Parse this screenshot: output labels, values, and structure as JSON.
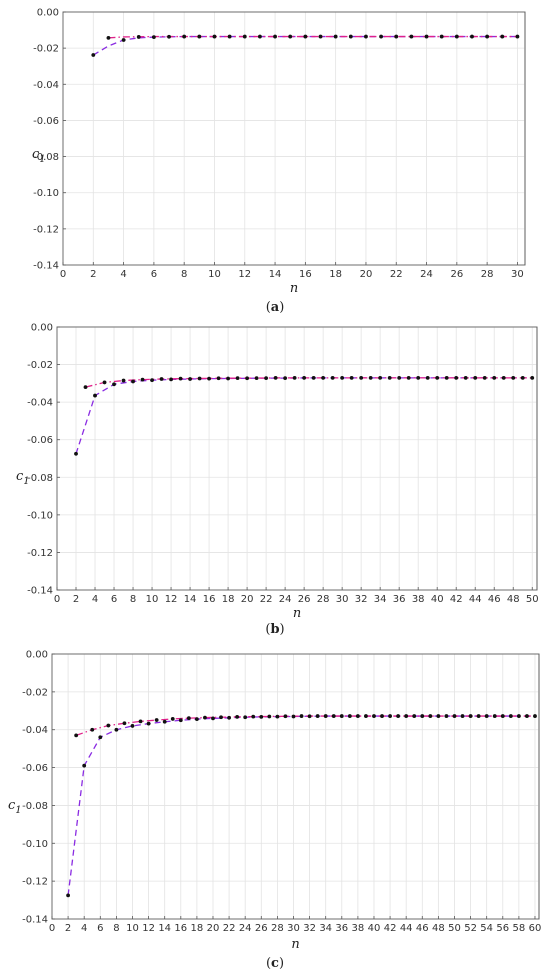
{
  "chart_data": [
    {
      "type": "line",
      "caption": "(a)",
      "caption_letter": "a",
      "xlabel": "n",
      "ylabel": "c",
      "ylabel_sub": "1",
      "xlim": [
        0,
        30.5
      ],
      "ylim": [
        -0.14,
        0
      ],
      "xticks": [
        0,
        2,
        4,
        6,
        8,
        10,
        12,
        14,
        16,
        18,
        20,
        22,
        24,
        26,
        28,
        30
      ],
      "yticks": [
        0.0,
        -0.02,
        -0.04,
        -0.06,
        -0.08,
        -0.1,
        -0.12,
        -0.14
      ],
      "ytick_labels": [
        "0.00",
        "-0.02",
        "-0.04",
        "-0.06",
        "-0.08",
        "-0.10",
        "-0.12",
        "-0.14"
      ],
      "grid": true,
      "series": [
        {
          "style": "dashed",
          "color": "#8a2be2",
          "x": [
            2,
            3,
            4,
            5,
            6,
            7,
            8,
            9,
            10,
            11,
            12,
            13,
            14,
            15,
            16,
            17,
            18,
            19,
            20,
            21,
            22,
            23,
            24,
            25,
            26,
            27,
            28,
            29,
            30
          ],
          "values": [
            -0.0238,
            -0.0188,
            -0.0155,
            -0.0143,
            -0.0139,
            -0.0137,
            -0.0136,
            -0.0136,
            -0.0136,
            -0.0136,
            -0.0136,
            -0.0136,
            -0.0136,
            -0.0136,
            -0.0136,
            -0.0136,
            -0.0136,
            -0.0136,
            -0.0136,
            -0.0136,
            -0.0136,
            -0.0136,
            -0.0136,
            -0.0136,
            -0.0136,
            -0.0136,
            -0.0136,
            -0.0136,
            -0.0136
          ]
        },
        {
          "style": "dashdot",
          "color": "#e0218a",
          "x": [
            3,
            4,
            5,
            6,
            7,
            8,
            9,
            10,
            11,
            12,
            13,
            14,
            15,
            16,
            17,
            18,
            19,
            20,
            21,
            22,
            23,
            24,
            25,
            26,
            27,
            28,
            29,
            30
          ],
          "values": [
            -0.0143,
            -0.0138,
            -0.0137,
            -0.0136,
            -0.0136,
            -0.0136,
            -0.0136,
            -0.0136,
            -0.0136,
            -0.0136,
            -0.0136,
            -0.0136,
            -0.0136,
            -0.0136,
            -0.0136,
            -0.0136,
            -0.0136,
            -0.0136,
            -0.0136,
            -0.0136,
            -0.0136,
            -0.0136,
            -0.0136,
            -0.0136,
            -0.0136,
            -0.0136,
            -0.0136,
            -0.0136
          ]
        }
      ],
      "points": {
        "x": [
          2,
          3,
          4,
          5,
          6,
          7,
          8,
          9,
          10,
          11,
          12,
          13,
          14,
          15,
          16,
          17,
          18,
          19,
          20,
          21,
          22,
          23,
          24,
          25,
          26,
          27,
          28,
          29,
          30
        ],
        "values": [
          -0.0238,
          -0.0143,
          -0.0155,
          -0.0138,
          -0.0139,
          -0.0137,
          -0.0136,
          -0.0136,
          -0.0136,
          -0.0136,
          -0.0136,
          -0.0136,
          -0.0136,
          -0.0136,
          -0.0136,
          -0.0136,
          -0.0136,
          -0.0136,
          -0.0136,
          -0.0136,
          -0.0136,
          -0.0136,
          -0.0136,
          -0.0136,
          -0.0136,
          -0.0136,
          -0.0136,
          -0.0136,
          -0.0136
        ]
      }
    },
    {
      "type": "line",
      "caption": "(b)",
      "caption_letter": "b",
      "xlabel": "n",
      "ylabel": "c",
      "ylabel_sub": "1",
      "xlim": [
        0,
        50.5
      ],
      "ylim": [
        -0.14,
        0
      ],
      "xticks": [
        0,
        2,
        4,
        6,
        8,
        10,
        12,
        14,
        16,
        18,
        20,
        22,
        24,
        26,
        28,
        30,
        32,
        34,
        36,
        38,
        40,
        42,
        44,
        46,
        48,
        50
      ],
      "yticks": [
        0.0,
        -0.02,
        -0.04,
        -0.06,
        -0.08,
        -0.1,
        -0.12,
        -0.14
      ],
      "ytick_labels": [
        "0.00",
        "-0.02",
        "-0.04",
        "-0.06",
        "-0.08",
        "-0.10",
        "-0.12",
        "-0.14"
      ],
      "grid": true,
      "series": [
        {
          "style": "dashed",
          "color": "#8a2be2",
          "x": [
            2,
            4,
            6,
            8,
            10,
            12,
            14,
            16,
            18,
            20,
            22,
            24,
            26,
            28,
            30,
            32,
            34,
            36,
            38,
            40,
            42,
            44,
            46,
            48,
            50
          ],
          "values": [
            -0.0675,
            -0.0365,
            -0.0305,
            -0.029,
            -0.0283,
            -0.0279,
            -0.0277,
            -0.0275,
            -0.0274,
            -0.0273,
            -0.0272,
            -0.0272,
            -0.0271,
            -0.0271,
            -0.0271,
            -0.0271,
            -0.0271,
            -0.0271,
            -0.0271,
            -0.0271,
            -0.0271,
            -0.0271,
            -0.0271,
            -0.0271,
            -0.0271
          ]
        },
        {
          "style": "dashdot",
          "color": "#e0218a",
          "x": [
            3,
            5,
            7,
            9,
            11,
            13,
            15,
            17,
            19,
            21,
            23,
            25,
            27,
            29,
            31,
            33,
            35,
            37,
            39,
            41,
            43,
            45,
            47,
            49,
            50
          ],
          "values": [
            -0.032,
            -0.0295,
            -0.0285,
            -0.028,
            -0.0277,
            -0.0275,
            -0.0274,
            -0.0273,
            -0.0272,
            -0.0272,
            -0.0271,
            -0.0271,
            -0.0271,
            -0.0271,
            -0.0271,
            -0.0271,
            -0.0271,
            -0.0271,
            -0.0271,
            -0.0271,
            -0.0271,
            -0.0271,
            -0.0271,
            -0.0271,
            -0.0271
          ]
        }
      ],
      "points": {
        "x": [
          2,
          3,
          4,
          5,
          6,
          7,
          8,
          9,
          10,
          11,
          12,
          13,
          14,
          15,
          16,
          17,
          18,
          19,
          20,
          21,
          22,
          23,
          24,
          25,
          26,
          27,
          28,
          29,
          30,
          31,
          32,
          33,
          34,
          35,
          36,
          37,
          38,
          39,
          40,
          41,
          42,
          43,
          44,
          45,
          46,
          47,
          48,
          49,
          50
        ],
        "values": [
          -0.0675,
          -0.032,
          -0.0365,
          -0.0295,
          -0.0305,
          -0.0285,
          -0.029,
          -0.028,
          -0.0283,
          -0.0277,
          -0.0279,
          -0.0275,
          -0.0277,
          -0.0274,
          -0.0275,
          -0.0273,
          -0.0274,
          -0.0272,
          -0.0273,
          -0.0272,
          -0.0272,
          -0.0271,
          -0.0272,
          -0.0271,
          -0.0271,
          -0.0271,
          -0.0271,
          -0.0271,
          -0.0271,
          -0.0271,
          -0.0271,
          -0.0271,
          -0.0271,
          -0.0271,
          -0.0271,
          -0.0271,
          -0.0271,
          -0.0271,
          -0.0271,
          -0.0271,
          -0.0271,
          -0.0271,
          -0.0271,
          -0.0271,
          -0.0271,
          -0.0271,
          -0.0271,
          -0.0271,
          -0.0271
        ]
      }
    },
    {
      "type": "line",
      "caption": "(c)",
      "caption_letter": "c",
      "xlabel": "n",
      "ylabel": "c",
      "ylabel_sub": "1",
      "xlim": [
        0,
        60.5
      ],
      "ylim": [
        -0.14,
        0
      ],
      "xticks": [
        0,
        2,
        4,
        6,
        8,
        10,
        12,
        14,
        16,
        18,
        20,
        22,
        24,
        26,
        28,
        30,
        32,
        34,
        36,
        38,
        40,
        42,
        44,
        46,
        48,
        50,
        52,
        54,
        56,
        58,
        60
      ],
      "yticks": [
        0.0,
        -0.02,
        -0.04,
        -0.06,
        -0.08,
        -0.1,
        -0.12,
        -0.14
      ],
      "ytick_labels": [
        "0.00",
        "-0.02",
        "-0.04",
        "-0.06",
        "-0.08",
        "-0.10",
        "-0.12",
        "-0.14"
      ],
      "grid": true,
      "series": [
        {
          "style": "dashed",
          "color": "#8a2be2",
          "x": [
            2,
            4,
            6,
            8,
            10,
            12,
            14,
            16,
            18,
            20,
            22,
            24,
            26,
            28,
            30,
            32,
            34,
            36,
            38,
            40,
            42,
            44,
            46,
            48,
            50,
            52,
            54,
            56,
            58,
            60
          ],
          "values": [
            -0.1275,
            -0.059,
            -0.044,
            -0.04,
            -0.038,
            -0.0368,
            -0.0358,
            -0.035,
            -0.0344,
            -0.034,
            -0.0337,
            -0.0334,
            -0.0332,
            -0.0331,
            -0.033,
            -0.0329,
            -0.0328,
            -0.0328,
            -0.0328,
            -0.0328,
            -0.0328,
            -0.0328,
            -0.0328,
            -0.0328,
            -0.0328,
            -0.0328,
            -0.0328,
            -0.0328,
            -0.0328,
            -0.0328
          ]
        },
        {
          "style": "dashdot",
          "color": "#e0218a",
          "x": [
            3,
            5,
            7,
            9,
            11,
            13,
            15,
            17,
            19,
            21,
            23,
            25,
            27,
            29,
            31,
            33,
            35,
            37,
            39,
            41,
            43,
            45,
            47,
            49,
            51,
            53,
            55,
            57,
            59,
            60
          ],
          "values": [
            -0.043,
            -0.04,
            -0.0378,
            -0.0366,
            -0.0356,
            -0.0349,
            -0.0343,
            -0.0339,
            -0.0336,
            -0.0334,
            -0.0332,
            -0.0331,
            -0.033,
            -0.0329,
            -0.0328,
            -0.0328,
            -0.0328,
            -0.0328,
            -0.0328,
            -0.0328,
            -0.0328,
            -0.0328,
            -0.0328,
            -0.0328,
            -0.0328,
            -0.0328,
            -0.0328,
            -0.0328,
            -0.0328,
            -0.0328
          ]
        }
      ],
      "points": {
        "x": [
          2,
          3,
          4,
          5,
          6,
          7,
          8,
          9,
          10,
          11,
          12,
          13,
          14,
          15,
          16,
          17,
          18,
          19,
          20,
          21,
          22,
          23,
          24,
          25,
          26,
          27,
          28,
          29,
          30,
          31,
          32,
          33,
          34,
          35,
          36,
          37,
          38,
          39,
          40,
          41,
          42,
          43,
          44,
          45,
          46,
          47,
          48,
          49,
          50,
          51,
          52,
          53,
          54,
          55,
          56,
          57,
          58,
          59,
          60
        ],
        "values": [
          -0.1275,
          -0.043,
          -0.059,
          -0.04,
          -0.044,
          -0.0378,
          -0.04,
          -0.0366,
          -0.038,
          -0.0356,
          -0.0368,
          -0.0349,
          -0.0358,
          -0.0343,
          -0.035,
          -0.0339,
          -0.0344,
          -0.0336,
          -0.034,
          -0.0334,
          -0.0337,
          -0.0332,
          -0.0334,
          -0.0331,
          -0.0332,
          -0.033,
          -0.0331,
          -0.0329,
          -0.033,
          -0.0328,
          -0.0329,
          -0.0328,
          -0.0328,
          -0.0328,
          -0.0328,
          -0.0328,
          -0.0328,
          -0.0328,
          -0.0328,
          -0.0328,
          -0.0328,
          -0.0328,
          -0.0328,
          -0.0328,
          -0.0328,
          -0.0328,
          -0.0328,
          -0.0328,
          -0.0328,
          -0.0328,
          -0.0328,
          -0.0328,
          -0.0328,
          -0.0328,
          -0.0328,
          -0.0328,
          -0.0328,
          -0.0328,
          -0.0328
        ]
      }
    }
  ]
}
